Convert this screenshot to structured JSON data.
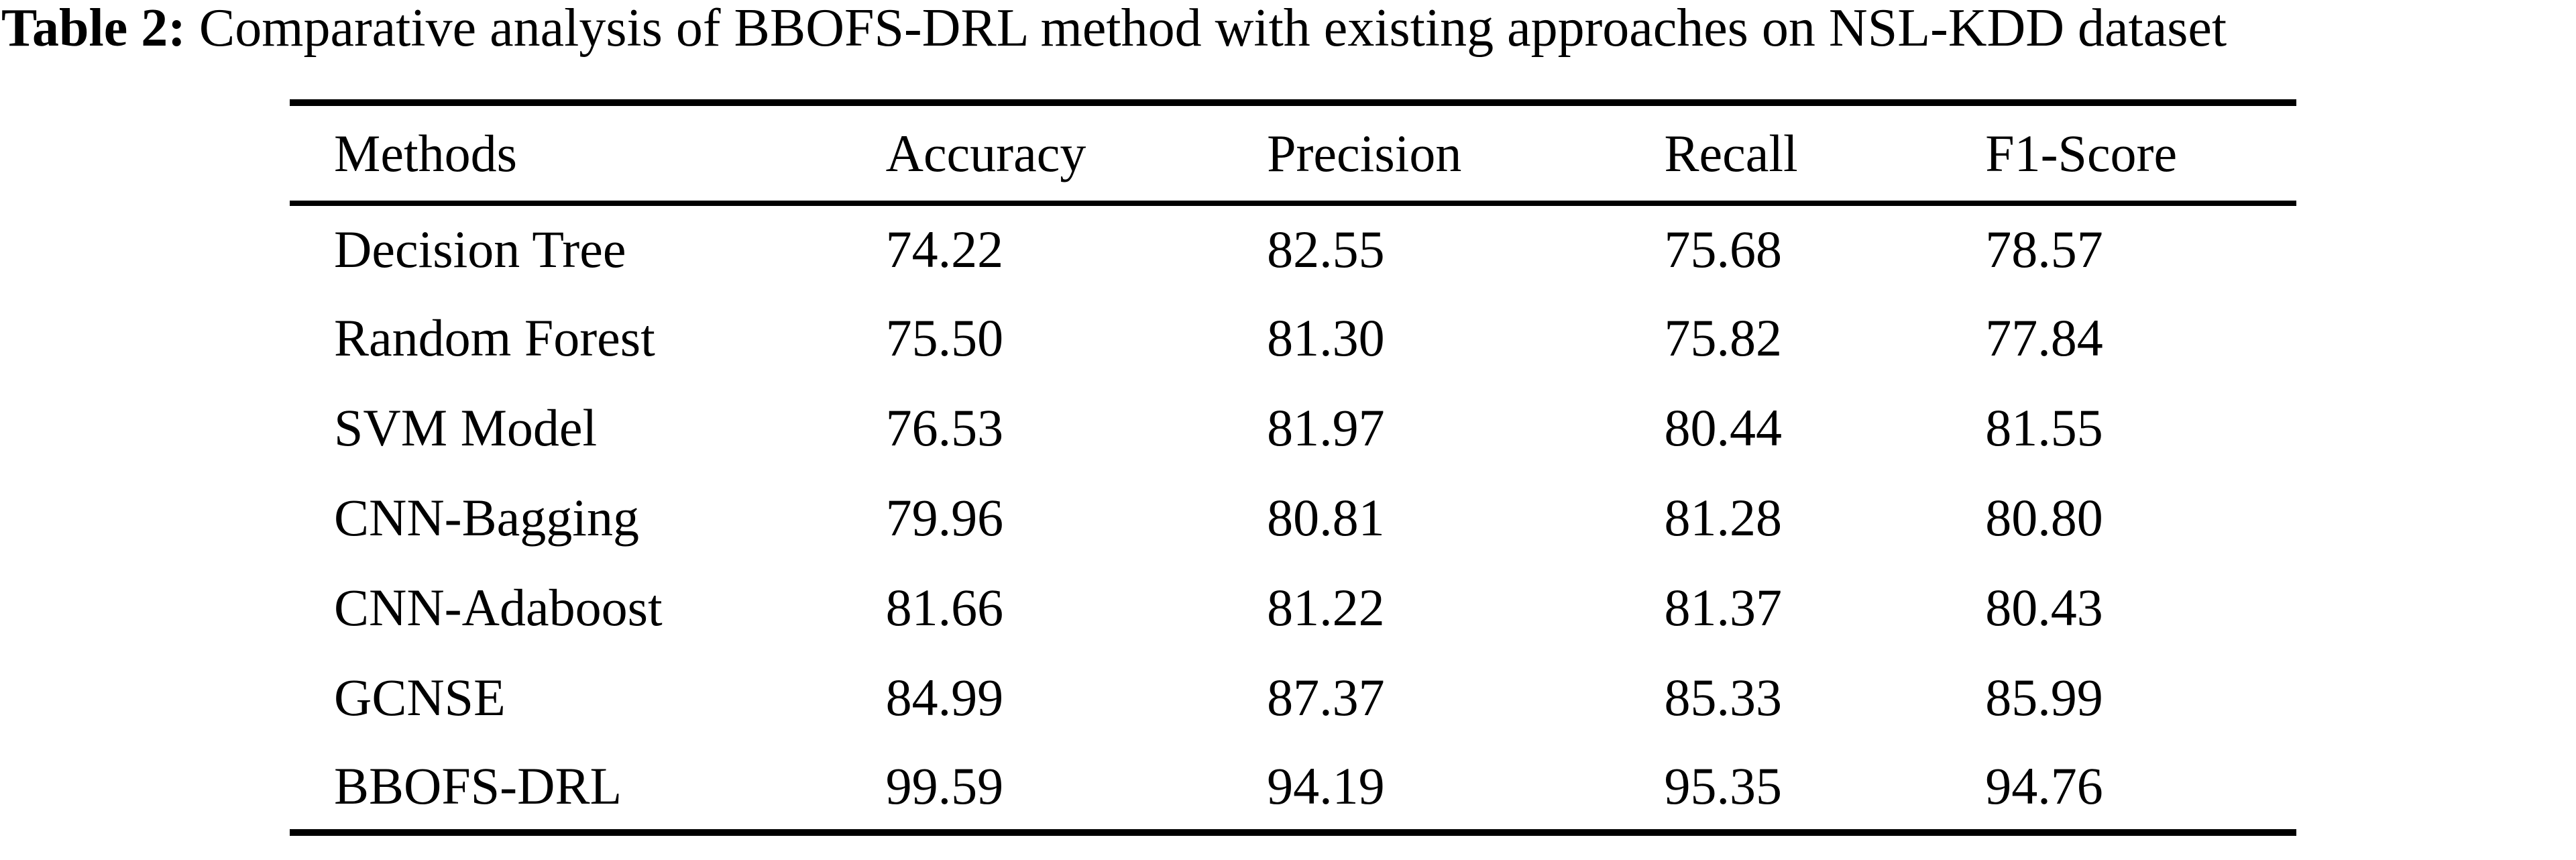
{
  "caption": {
    "label": "Table 2:",
    "text": " Comparative analysis of BBOFS-DRL method with existing approaches on NSL-KDD dataset"
  },
  "table": {
    "columns": [
      "Methods",
      "Accuracy",
      "Precision",
      "Recall",
      "F1-Score"
    ],
    "rows": [
      {
        "method": "Decision Tree",
        "accuracy": "74.22",
        "precision": "82.55",
        "recall": "75.68",
        "f1": "78.57"
      },
      {
        "method": "Random Forest",
        "accuracy": "75.50",
        "precision": "81.30",
        "recall": "75.82",
        "f1": "77.84"
      },
      {
        "method": "SVM Model",
        "accuracy": "76.53",
        "precision": "81.97",
        "recall": "80.44",
        "f1": "81.55"
      },
      {
        "method": "CNN-Bagging",
        "accuracy": "79.96",
        "precision": "80.81",
        "recall": "81.28",
        "f1": "80.80"
      },
      {
        "method": "CNN-Adaboost",
        "accuracy": "81.66",
        "precision": "81.22",
        "recall": "81.37",
        "f1": "80.43"
      },
      {
        "method": "GCNSE",
        "accuracy": "84.99",
        "precision": "87.37",
        "recall": "85.33",
        "f1": "85.99"
      },
      {
        "method": "BBOFS-DRL",
        "accuracy": "99.59",
        "precision": "94.19",
        "recall": "95.35",
        "f1": "94.76"
      }
    ]
  },
  "chart_data": {
    "type": "table",
    "title": "Table 2: Comparative analysis of BBOFS-DRL method with existing approaches on NSL-KDD dataset",
    "columns": [
      "Methods",
      "Accuracy",
      "Precision",
      "Recall",
      "F1-Score"
    ],
    "series": [
      {
        "name": "Decision Tree",
        "values": [
          74.22,
          82.55,
          75.68,
          78.57
        ]
      },
      {
        "name": "Random Forest",
        "values": [
          75.5,
          81.3,
          75.82,
          77.84
        ]
      },
      {
        "name": "SVM Model",
        "values": [
          76.53,
          81.97,
          80.44,
          81.55
        ]
      },
      {
        "name": "CNN-Bagging",
        "values": [
          79.96,
          80.81,
          81.28,
          80.8
        ]
      },
      {
        "name": "CNN-Adaboost",
        "values": [
          81.66,
          81.22,
          81.37,
          80.43
        ]
      },
      {
        "name": "GCNSE",
        "values": [
          84.99,
          87.37,
          85.33,
          85.99
        ]
      },
      {
        "name": "BBOFS-DRL",
        "values": [
          99.59,
          94.19,
          95.35,
          94.76
        ]
      }
    ]
  },
  "colors": {
    "background": "#ffffff",
    "text": "#000000",
    "rule": "#000000"
  }
}
